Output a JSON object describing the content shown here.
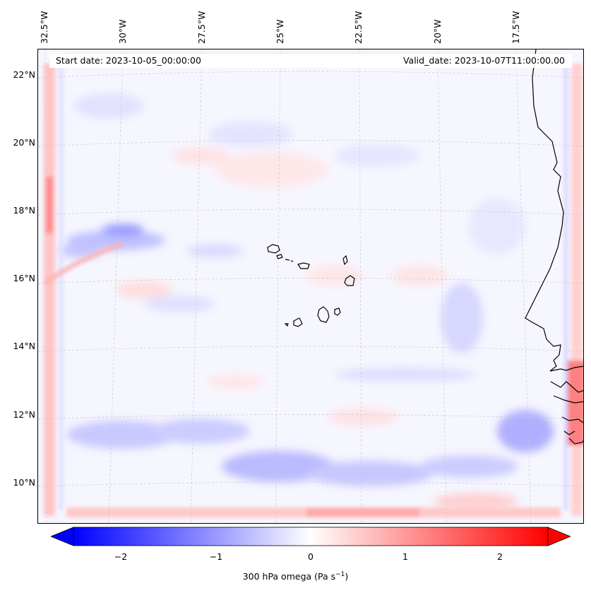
{
  "map": {
    "start_label": "Start date: 2023-10-05_00:00:00",
    "valid_label": "Valid_date: 2023-10-07T11:00:00.00",
    "lon_ticks": [
      "32.5°W",
      "30°W",
      "27.5°W",
      "25°W",
      "22.5°W",
      "20°W",
      "17.5°W"
    ],
    "lat_ticks": [
      "22°N",
      "20°N",
      "18°N",
      "16°N",
      "14°N",
      "12°N",
      "10°N"
    ],
    "gridlines": true,
    "projection": "Lambert conformal",
    "coastline": "Cape Verde islands and West African coast (Senegal / Gambia / Guinea-Bissau)"
  },
  "colorbar": {
    "label": "300 hPa omega (Pa s",
    "label_superscript": "−1",
    "label_close": ")",
    "ticks": [
      "−2",
      "−1",
      "0",
      "1",
      "2"
    ],
    "range": [
      -2.75,
      2.75
    ],
    "extend": "both",
    "colormap": "bwr",
    "low_color": "#0000ff",
    "mid_color": "#ffffff",
    "high_color": "#ff0000"
  }
}
